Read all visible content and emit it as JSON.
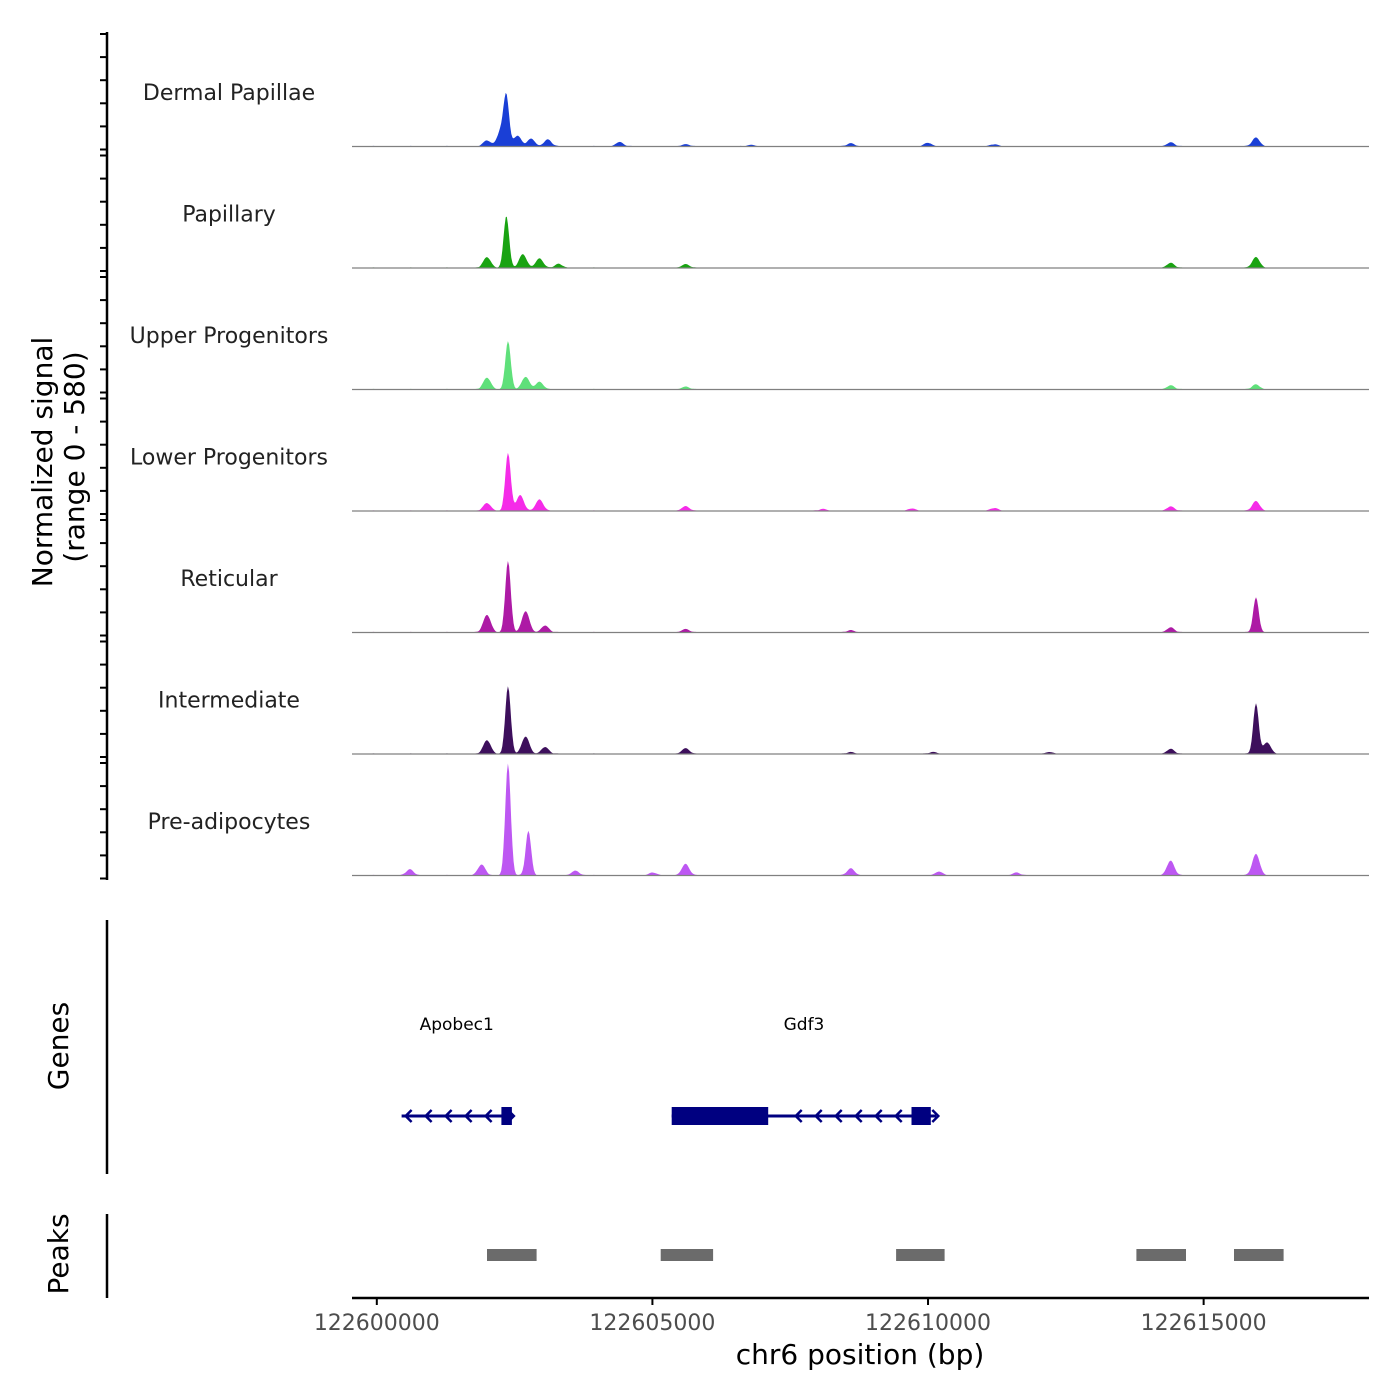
{
  "chart_data": {
    "type": "area",
    "title": "",
    "ylabel_line1": "Normalized signal",
    "ylabel_line2": "(range 0 - 580)",
    "yrange": [
      0,
      580
    ],
    "xlabel": "chr6 position (bp)",
    "xlim": [
      122599550,
      122618000
    ],
    "xticks": [
      122600000,
      122605000,
      122610000,
      122615000
    ],
    "xtick_labels": [
      "122600000",
      "122605000",
      "122610000",
      "122615000"
    ],
    "tracks": [
      {
        "name": "Dermal Papillae",
        "color": "#1a3fd6",
        "peaks": [
          [
            122602000,
            30
          ],
          [
            122602250,
            80
          ],
          [
            122602350,
            250
          ],
          [
            122602550,
            55
          ],
          [
            122602800,
            40
          ],
          [
            122603100,
            35
          ],
          [
            122604400,
            22
          ],
          [
            122605600,
            12
          ],
          [
            122606800,
            8
          ],
          [
            122608600,
            15
          ],
          [
            122610000,
            18
          ],
          [
            122611200,
            10
          ],
          [
            122614400,
            20
          ],
          [
            122615950,
            45
          ]
        ]
      },
      {
        "name": "Papillary",
        "color": "#19a312",
        "peaks": [
          [
            122602000,
            55
          ],
          [
            122602350,
            270
          ],
          [
            122602650,
            70
          ],
          [
            122602950,
            50
          ],
          [
            122603300,
            20
          ],
          [
            122605600,
            20
          ],
          [
            122614400,
            25
          ],
          [
            122615950,
            55
          ]
        ]
      },
      {
        "name": "Upper Progenitors",
        "color": "#5fe07a",
        "peaks": [
          [
            122602000,
            60
          ],
          [
            122602380,
            250
          ],
          [
            122602700,
            65
          ],
          [
            122602950,
            40
          ],
          [
            122605600,
            15
          ],
          [
            122614400,
            20
          ],
          [
            122615950,
            25
          ]
        ]
      },
      {
        "name": "Lower Progenitors",
        "color": "#f52be8",
        "peaks": [
          [
            122602000,
            40
          ],
          [
            122602380,
            300
          ],
          [
            122602600,
            80
          ],
          [
            122602950,
            60
          ],
          [
            122605600,
            25
          ],
          [
            122608100,
            10
          ],
          [
            122609700,
            12
          ],
          [
            122611200,
            14
          ],
          [
            122614400,
            22
          ],
          [
            122615950,
            50
          ]
        ]
      },
      {
        "name": "Reticular",
        "color": "#ad1aa5",
        "peaks": [
          [
            122602000,
            90
          ],
          [
            122602380,
            370
          ],
          [
            122602700,
            110
          ],
          [
            122603050,
            35
          ],
          [
            122605600,
            18
          ],
          [
            122608600,
            10
          ],
          [
            122614400,
            25
          ],
          [
            122615950,
            180
          ]
        ]
      },
      {
        "name": "Intermediate",
        "color": "#3d0f5c",
        "peaks": [
          [
            122602000,
            70
          ],
          [
            122602380,
            350
          ],
          [
            122602700,
            90
          ],
          [
            122603050,
            35
          ],
          [
            122605600,
            30
          ],
          [
            122608600,
            8
          ],
          [
            122610100,
            10
          ],
          [
            122612200,
            10
          ],
          [
            122614400,
            25
          ],
          [
            122615950,
            260
          ],
          [
            122616150,
            60
          ]
        ]
      },
      {
        "name": "Pre-adipocytes",
        "color": "#bd57f2",
        "peaks": [
          [
            122600600,
            30
          ],
          [
            122601900,
            55
          ],
          [
            122602380,
            580
          ],
          [
            122602750,
            230
          ],
          [
            122603600,
            25
          ],
          [
            122605000,
            15
          ],
          [
            122605600,
            60
          ],
          [
            122608600,
            35
          ],
          [
            122610200,
            20
          ],
          [
            122611600,
            15
          ],
          [
            122614400,
            75
          ],
          [
            122615950,
            110
          ]
        ]
      }
    ],
    "genes_label": "Genes",
    "genes": [
      {
        "name": "Apobec1",
        "start": 122600450,
        "end": 122602450,
        "strand": "-",
        "exons": [
          [
            122602260,
            122602450
          ]
        ]
      },
      {
        "name": "Gdf3",
        "start": 122605350,
        "end": 122610150,
        "strand": "-",
        "exons": [
          [
            122605350,
            122607100
          ],
          [
            122609700,
            122610050
          ]
        ]
      }
    ],
    "peaks_label": "Peaks",
    "peak_regions": [
      [
        122602000,
        122602900
      ],
      [
        122605150,
        122606100
      ],
      [
        122609420,
        122610300
      ],
      [
        122613780,
        122614680
      ],
      [
        122615550,
        122616450
      ]
    ],
    "colors": {
      "axis": "#000000",
      "baseline": "#808080",
      "gene": "#000080",
      "peak_box": "#6b6b6b"
    }
  }
}
